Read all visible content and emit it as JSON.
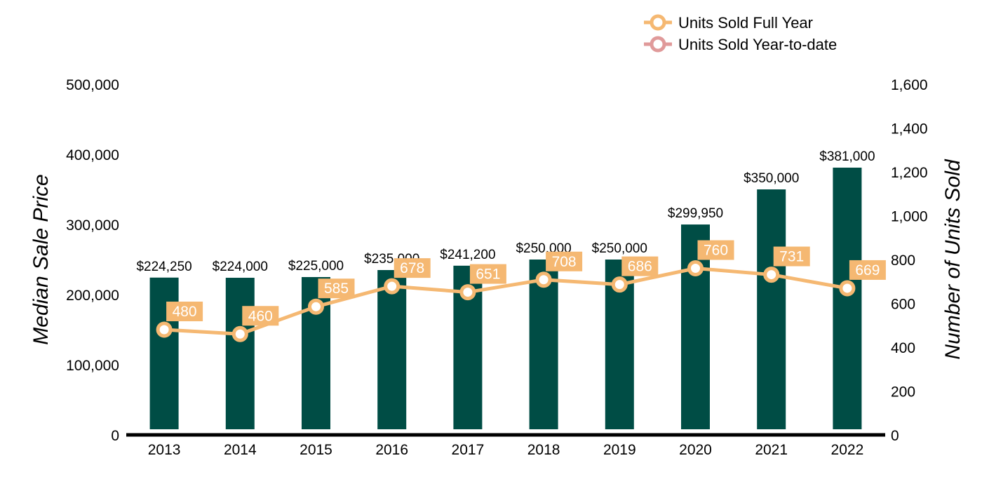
{
  "chart_data": {
    "type": "bar",
    "categories": [
      "2013",
      "2014",
      "2015",
      "2016",
      "2017",
      "2018",
      "2019",
      "2020",
      "2021",
      "2022"
    ],
    "bar_series": {
      "values": [
        224250,
        224000,
        225000,
        235000,
        241200,
        250000,
        250000,
        299950,
        350000,
        381000
      ],
      "labels": [
        "$224,250",
        "$224,000",
        "$225,000",
        "$235,000",
        "$241,200",
        "$250,000",
        "$250,000",
        "$299,950",
        "$350,000",
        "$381,000"
      ],
      "color": "#004d45"
    },
    "line_series": [
      {
        "name": "Units Sold Full Year",
        "values": [
          480,
          460,
          585,
          678,
          651,
          708,
          686,
          760,
          731,
          669
        ],
        "labels": [
          "480",
          "460",
          "585",
          "678",
          "651",
          "708",
          "686",
          "760",
          "731",
          "669"
        ],
        "color": "#f5b872"
      },
      {
        "name": "Units Sold Year-to-date",
        "values": [],
        "labels": [],
        "color": "#e09a9a"
      }
    ],
    "ylabel": "Median Sale Price",
    "y2label": "Number of Units Sold",
    "ylim": [
      0,
      500000
    ],
    "y2lim": [
      0,
      1600
    ],
    "yticks": [
      "0",
      "100,000",
      "200,000",
      "300,000",
      "400,000",
      "500,000"
    ],
    "y2ticks": [
      "0",
      "200",
      "400",
      "600",
      "800",
      "1,000",
      "1,200",
      "1,400",
      "1,600"
    ],
    "legend_position": "top-right",
    "grid": false
  }
}
